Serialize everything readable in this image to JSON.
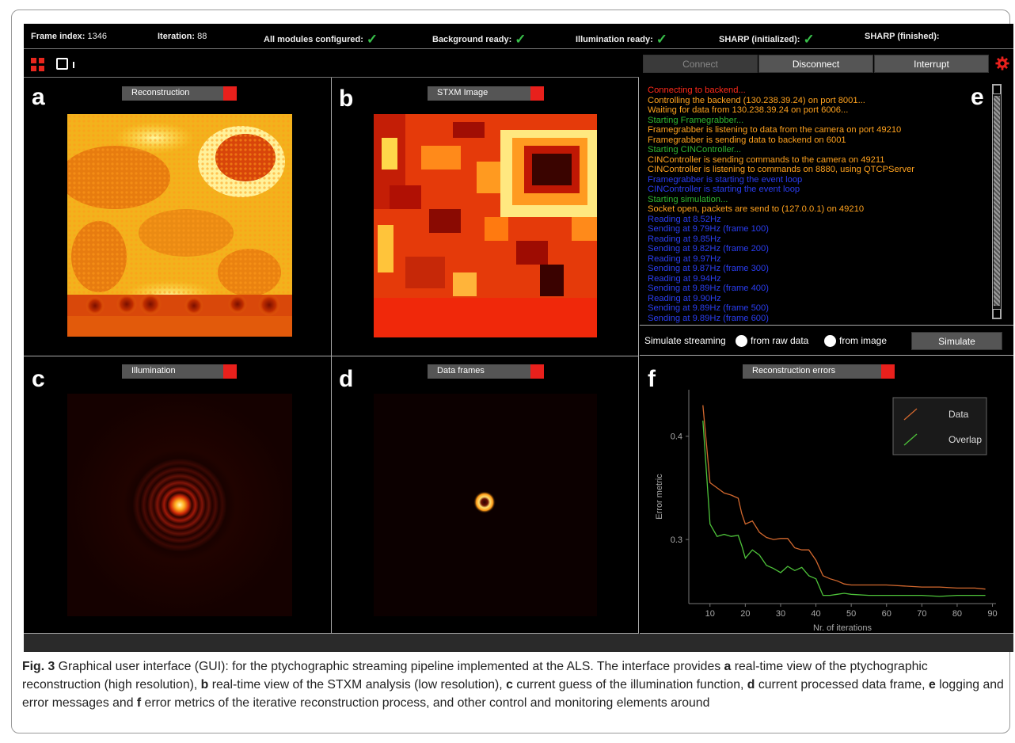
{
  "status_bar": {
    "frame_index_label": "Frame index:",
    "frame_index_value": "1346",
    "iteration_label": "Iteration:",
    "iteration_value": "88",
    "modules_label": "All modules configured:",
    "background_label": "Background ready:",
    "illumination_label": "Illumination ready:",
    "sharp_init_label": "SHARP (initialized):",
    "sharp_finished_label": "SHARP (finished):",
    "check_glyph": "✓"
  },
  "panels": {
    "a": {
      "letter": "a",
      "title": "Reconstruction"
    },
    "b": {
      "letter": "b",
      "title": "STXM Image"
    },
    "c": {
      "letter": "c",
      "title": "Illumination"
    },
    "d": {
      "letter": "d",
      "title": "Data frames"
    },
    "e": {
      "letter": "e"
    },
    "f": {
      "letter": "f",
      "title": "Reconstruction errors"
    }
  },
  "controls": {
    "connect": "Connect",
    "disconnect": "Disconnect",
    "interrupt": "Interrupt",
    "simulate_label": "Simulate streaming",
    "from_raw_data": "from raw data",
    "from_image": "from image",
    "simulate": "Simulate"
  },
  "log": [
    {
      "text": "Connecting to backend...",
      "color": "#ff2a1a"
    },
    {
      "text": "Controlling the backend (130.238.39.24) on port 8001...",
      "color": "#ffa21e"
    },
    {
      "text": "Waiting for data from 130.238.39.24 on port 6006...",
      "color": "#ffa21e"
    },
    {
      "text": "Starting Framegrabber...",
      "color": "#2fb52f"
    },
    {
      "text": "Framegrabber is listening to data from the camera on port 49210",
      "color": "#ffa21e"
    },
    {
      "text": "Framegrabber is sending data to backend on 6001",
      "color": "#ffa21e"
    },
    {
      "text": "Starting CINController...",
      "color": "#2fb52f"
    },
    {
      "text": "CINController is sending commands to the camera on 49211",
      "color": "#ffa21e"
    },
    {
      "text": "CINController is listening to commands on 8880, using QTCPServer",
      "color": "#ffa21e"
    },
    {
      "text": "Framegrabber is starting the event loop",
      "color": "#2a3df0"
    },
    {
      "text": "CINController is starting the event loop",
      "color": "#2a3df0"
    },
    {
      "text": "Starting simulation...",
      "color": "#2fb52f"
    },
    {
      "text": "Socket open, packets are send to (127.0.0.1) on 49210",
      "color": "#ffa21e"
    },
    {
      "text": "Reading at 8.52Hz",
      "color": "#2a3df0"
    },
    {
      "text": "Sending at 9.79Hz (frame 100)",
      "color": "#2a3df0"
    },
    {
      "text": "Reading at 9.85Hz",
      "color": "#2a3df0"
    },
    {
      "text": "Sending at 9.82Hz (frame 200)",
      "color": "#2a3df0"
    },
    {
      "text": "Reading at 9.97Hz",
      "color": "#2a3df0"
    },
    {
      "text": "Sending at 9.87Hz (frame 300)",
      "color": "#2a3df0"
    },
    {
      "text": "Reading at 9.94Hz",
      "color": "#2a3df0"
    },
    {
      "text": "Sending at 9.89Hz (frame 400)",
      "color": "#2a3df0"
    },
    {
      "text": "Reading at 9.90Hz",
      "color": "#2a3df0"
    },
    {
      "text": "Sending at 9.89Hz (frame 500)",
      "color": "#2a3df0"
    },
    {
      "text": "Sending at 9.89Hz (frame 600)",
      "color": "#2a3df0"
    }
  ],
  "chart_data": {
    "type": "line",
    "title": "Reconstruction errors",
    "xlabel": "Nr. of iterations",
    "ylabel": "Error metric",
    "xlim": [
      4,
      91
    ],
    "ylim": [
      0.238,
      0.445
    ],
    "xticks": [
      10,
      20,
      30,
      40,
      50,
      60,
      70,
      80,
      90
    ],
    "yticks": [
      0.3,
      0.4
    ],
    "legend_position": "top-right",
    "series": [
      {
        "name": "Data",
        "color": "#d2682e",
        "x": [
          8,
          10,
          12,
          14,
          16,
          18,
          19,
          20,
          22,
          24,
          26,
          28,
          30,
          32,
          34,
          36,
          38,
          40,
          42,
          44,
          46,
          48,
          50,
          55,
          60,
          65,
          70,
          75,
          80,
          85,
          88
        ],
        "y": [
          0.43,
          0.355,
          0.35,
          0.345,
          0.343,
          0.34,
          0.325,
          0.315,
          0.318,
          0.307,
          0.302,
          0.3,
          0.301,
          0.301,
          0.292,
          0.29,
          0.29,
          0.28,
          0.265,
          0.262,
          0.26,
          0.257,
          0.256,
          0.256,
          0.256,
          0.255,
          0.254,
          0.254,
          0.253,
          0.253,
          0.252
        ]
      },
      {
        "name": "Overlap",
        "color": "#4ec33a",
        "x": [
          8,
          10,
          12,
          14,
          16,
          18,
          19,
          20,
          22,
          24,
          26,
          28,
          30,
          32,
          34,
          36,
          38,
          40,
          42,
          44,
          46,
          48,
          50,
          55,
          60,
          65,
          70,
          75,
          80,
          85,
          88
        ],
        "y": [
          0.415,
          0.315,
          0.303,
          0.305,
          0.303,
          0.304,
          0.294,
          0.282,
          0.29,
          0.285,
          0.275,
          0.272,
          0.268,
          0.274,
          0.27,
          0.273,
          0.265,
          0.262,
          0.246,
          0.246,
          0.247,
          0.248,
          0.247,
          0.246,
          0.246,
          0.246,
          0.246,
          0.245,
          0.246,
          0.246,
          0.246
        ]
      }
    ]
  },
  "caption": {
    "prefix": "Fig. 3",
    "t0": "  Graphical user interface (GUI): for the ptychographic streaming pipeline implemented at the ALS. The interface provides ",
    "b1": "a",
    "t1": " real-time view of the ptychographic reconstruction (high resolution), ",
    "b2": "b",
    "t2": " real-time view of the STXM analysis (low resolution), ",
    "b3": "c",
    "t3": " current guess of the illumination function, ",
    "b4": "d",
    "t4": " current processed data frame, ",
    "b5": "e",
    "t5": " logging and error messages and ",
    "b6": "f",
    "t6": " error metrics of the iterative reconstruction process, and other control and monitoring elements around"
  },
  "colors": {
    "accent_red": "#e8201c",
    "check_green": "#38c04a",
    "panel_bg": "#000000"
  }
}
